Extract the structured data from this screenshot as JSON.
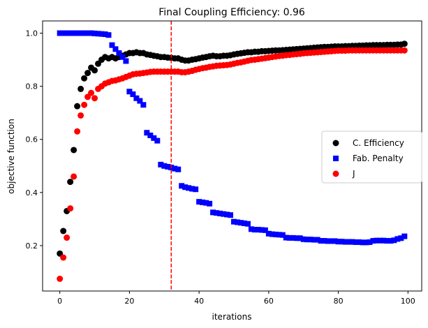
{
  "chart_data": {
    "type": "scatter",
    "title": "Final Coupling Efficiency: 0.96",
    "xlabel": "iterations",
    "ylabel": "objective function",
    "xlim": [
      -4.95,
      103.95
    ],
    "ylim": [
      0.029,
      1.046
    ],
    "xticks": [
      0,
      20,
      40,
      60,
      80,
      100
    ],
    "yticks": [
      0.2,
      0.4,
      0.6,
      0.8,
      1.0
    ],
    "ytick_labels": [
      "0.2",
      "0.4",
      "0.6",
      "0.8",
      "1.0"
    ],
    "grid": false,
    "legend_placement": "center-right",
    "vline": {
      "x": 32,
      "color": "#ff0000",
      "style": "dashed"
    },
    "series": [
      {
        "name": "C. Efficiency",
        "marker": "circle",
        "color": "#000000",
        "values": [
          0.17,
          0.255,
          0.33,
          0.44,
          0.56,
          0.725,
          0.79,
          0.83,
          0.85,
          0.87,
          0.86,
          0.885,
          0.9,
          0.91,
          0.905,
          0.91,
          0.905,
          0.91,
          0.915,
          0.92,
          0.925,
          0.925,
          0.928,
          0.925,
          0.925,
          0.92,
          0.918,
          0.915,
          0.913,
          0.91,
          0.91,
          0.908,
          0.907,
          0.905,
          0.905,
          0.9,
          0.897,
          0.897,
          0.9,
          0.902,
          0.905,
          0.908,
          0.91,
          0.913,
          0.915,
          0.913,
          0.913,
          0.915,
          0.915,
          0.917,
          0.92,
          0.922,
          0.924,
          0.926,
          0.928,
          0.928,
          0.93,
          0.93,
          0.932,
          0.932,
          0.933,
          0.934,
          0.935,
          0.935,
          0.936,
          0.937,
          0.938,
          0.939,
          0.94,
          0.941,
          0.942,
          0.943,
          0.944,
          0.945,
          0.946,
          0.947,
          0.948,
          0.948,
          0.949,
          0.95,
          0.95,
          0.95,
          0.951,
          0.951,
          0.952,
          0.952,
          0.953,
          0.953,
          0.954,
          0.954,
          0.955,
          0.955,
          0.955,
          0.955,
          0.956,
          0.956,
          0.956,
          0.957,
          0.957,
          0.96
        ]
      },
      {
        "name": "Fab. Penalty",
        "marker": "square",
        "color": "#0000ff",
        "values": [
          1,
          1,
          1,
          1,
          1,
          1,
          1,
          1,
          1,
          1,
          0.999,
          0.998,
          0.997,
          0.996,
          0.993,
          0.955,
          0.94,
          0.925,
          0.91,
          0.895,
          0.78,
          0.77,
          0.755,
          0.745,
          0.73,
          0.625,
          0.615,
          0.605,
          0.595,
          0.505,
          0.5,
          0.497,
          0.494,
          0.49,
          0.487,
          0.425,
          0.42,
          0.417,
          0.414,
          0.412,
          0.365,
          0.363,
          0.361,
          0.358,
          0.325,
          0.323,
          0.321,
          0.319,
          0.317,
          0.315,
          0.29,
          0.288,
          0.286,
          0.284,
          0.282,
          0.262,
          0.26,
          0.26,
          0.259,
          0.258,
          0.245,
          0.243,
          0.242,
          0.241,
          0.24,
          0.23,
          0.229,
          0.229,
          0.228,
          0.228,
          0.224,
          0.223,
          0.223,
          0.222,
          0.222,
          0.218,
          0.218,
          0.217,
          0.217,
          0.217,
          0.215,
          0.215,
          0.214,
          0.214,
          0.214,
          0.213,
          0.213,
          0.212,
          0.212,
          0.213,
          0.218,
          0.219,
          0.219,
          0.219,
          0.218,
          0.218,
          0.22,
          0.225,
          0.228,
          0.235
        ]
      },
      {
        "name": "J",
        "marker": "circle",
        "color": "#ff0000",
        "values": [
          0.075,
          0.155,
          0.23,
          0.34,
          0.46,
          0.63,
          0.69,
          0.73,
          0.76,
          0.775,
          0.755,
          0.79,
          0.8,
          0.81,
          0.815,
          0.82,
          0.822,
          0.826,
          0.83,
          0.835,
          0.84,
          0.845,
          0.847,
          0.848,
          0.85,
          0.852,
          0.854,
          0.855,
          0.855,
          0.855,
          0.855,
          0.855,
          0.855,
          0.855,
          0.855,
          0.853,
          0.853,
          0.855,
          0.858,
          0.862,
          0.865,
          0.868,
          0.87,
          0.873,
          0.875,
          0.877,
          0.878,
          0.879,
          0.88,
          0.882,
          0.885,
          0.888,
          0.89,
          0.893,
          0.896,
          0.899,
          0.9,
          0.902,
          0.904,
          0.906,
          0.908,
          0.91,
          0.912,
          0.914,
          0.915,
          0.917,
          0.918,
          0.92,
          0.921,
          0.922,
          0.924,
          0.925,
          0.926,
          0.927,
          0.928,
          0.929,
          0.93,
          0.931,
          0.932,
          0.933,
          0.934,
          0.934,
          0.934,
          0.935,
          0.935,
          0.935,
          0.935,
          0.935,
          0.935,
          0.935,
          0.935,
          0.935,
          0.935,
          0.935,
          0.935,
          0.935,
          0.935,
          0.935,
          0.935,
          0.935
        ]
      }
    ]
  }
}
